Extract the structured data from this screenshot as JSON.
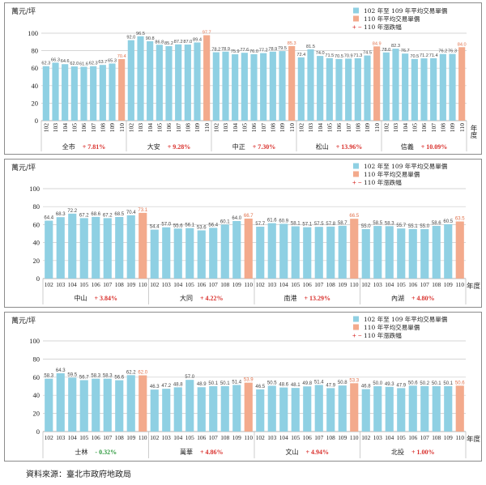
{
  "colors": {
    "base": "#8fd0e3",
    "current": "#f3aa8c",
    "up": "#d9302c",
    "down": "#2e9a3e"
  },
  "chart_data": [
    {
      "type": "bar",
      "ylabel": "萬元/坪",
      "xlabel": "年度",
      "ylim": [
        0,
        100
      ],
      "yticks": [
        0,
        20,
        40,
        60,
        80,
        100
      ],
      "grid": true,
      "legend_position": "top-right",
      "legend": [
        {
          "label": "102 年至 109 年平均交易單價",
          "color": "#8fd0e3"
        },
        {
          "label": "110 年平均交易單價",
          "color": "#f3aa8c"
        },
        {
          "label": "110 年漲跌幅",
          "marker": "+ −"
        }
      ],
      "categories": [
        "102",
        "103",
        "104",
        "105",
        "106",
        "107",
        "108",
        "109",
        "110"
      ],
      "groups": [
        {
          "name": "全市",
          "change": "+ 7.81%",
          "values": [
            62.3,
            66.3,
            64.6,
            62.0,
            61.6,
            62.3,
            63.7,
            65.3,
            70.4
          ]
        },
        {
          "name": "大安",
          "change": "+ 9.28%",
          "values": [
            92.0,
            96.5,
            90.8,
            86.8,
            85.2,
            87.2,
            87.0,
            89.4,
            97.7
          ]
        },
        {
          "name": "中正",
          "change": "+ 7.30%",
          "values": [
            78.2,
            78.9,
            75.9,
            77.6,
            76.0,
            77.2,
            78.9,
            79.5,
            85.3
          ]
        },
        {
          "name": "松山",
          "change": "+ 13.96%",
          "values": [
            72.4,
            81.5,
            74.0,
            71.5,
            70.5,
            70.9,
            71.3,
            74.5,
            84.9
          ]
        },
        {
          "name": "信義",
          "change": "+ 10.09%",
          "values": [
            78.0,
            82.3,
            76.7,
            70.5,
            71.2,
            71.4,
            76.2,
            76.3,
            84.0
          ]
        }
      ]
    },
    {
      "type": "bar",
      "ylabel": "萬元/坪",
      "xlabel": "年度",
      "ylim": [
        0,
        100
      ],
      "yticks": [
        0,
        20,
        40,
        60,
        80,
        100
      ],
      "grid": true,
      "legend_position": "top-right",
      "legend": [
        {
          "label": "102 年至 109 年平均交易單價",
          "color": "#8fd0e3"
        },
        {
          "label": "110 年平均交易單價",
          "color": "#f3aa8c"
        },
        {
          "label": "110 年漲跌幅",
          "marker": "+ −"
        }
      ],
      "categories": [
        "102",
        "103",
        "104",
        "105",
        "106",
        "107",
        "108",
        "109",
        "110"
      ],
      "groups": [
        {
          "name": "中山",
          "change": "+ 3.84%",
          "values": [
            64.4,
            68.3,
            72.2,
            67.2,
            68.6,
            67.2,
            68.5,
            70.4,
            73.1
          ]
        },
        {
          "name": "大同",
          "change": "+ 4.22%",
          "values": [
            54.4,
            57.0,
            55.6,
            56.1,
            53.6,
            56.4,
            60.1,
            64.0,
            66.7
          ]
        },
        {
          "name": "南港",
          "change": "+ 13.29%",
          "values": [
            57.7,
            61.6,
            60.9,
            58.1,
            57.1,
            57.5,
            57.8,
            58.7,
            66.5
          ]
        },
        {
          "name": "內湖",
          "change": "+ 4.80%",
          "values": [
            55.0,
            58.5,
            58.3,
            55.7,
            55.1,
            55.0,
            58.6,
            60.5,
            63.5
          ]
        }
      ]
    },
    {
      "type": "bar",
      "ylabel": "萬元/坪",
      "xlabel": "年度",
      "ylim": [
        0,
        100
      ],
      "yticks": [
        0,
        20,
        40,
        60,
        80,
        100
      ],
      "grid": true,
      "legend_position": "top-right",
      "legend": [
        {
          "label": "102 年至 109 年平均交易單價",
          "color": "#8fd0e3"
        },
        {
          "label": "110 年平均交易單價",
          "color": "#f3aa8c"
        },
        {
          "label": "110 年漲跌幅",
          "marker": "+ −"
        }
      ],
      "categories": [
        "102",
        "103",
        "104",
        "105",
        "106",
        "107",
        "108",
        "109",
        "110"
      ],
      "groups": [
        {
          "name": "士林",
          "change": "- 0.32%",
          "values": [
            58.3,
            64.3,
            59.5,
            56.7,
            58.3,
            58.3,
            56.6,
            62.2,
            62.0
          ]
        },
        {
          "name": "萬華",
          "change": "+ 4.86%",
          "values": [
            46.3,
            47.2,
            48.8,
            57.0,
            48.9,
            50.1,
            50.1,
            51.4,
            53.9
          ]
        },
        {
          "name": "文山",
          "change": "+ 4.94%",
          "values": [
            46.5,
            50.5,
            48.6,
            48.1,
            49.8,
            51.4,
            47.9,
            50.8,
            53.3
          ]
        },
        {
          "name": "北投",
          "change": "+ 1.00%",
          "values": [
            46.8,
            50.0,
            49.3,
            47.9,
            50.6,
            50.2,
            50.1,
            50.1,
            50.6
          ]
        }
      ]
    }
  ],
  "source": "資料來源：臺北市政府地政局"
}
